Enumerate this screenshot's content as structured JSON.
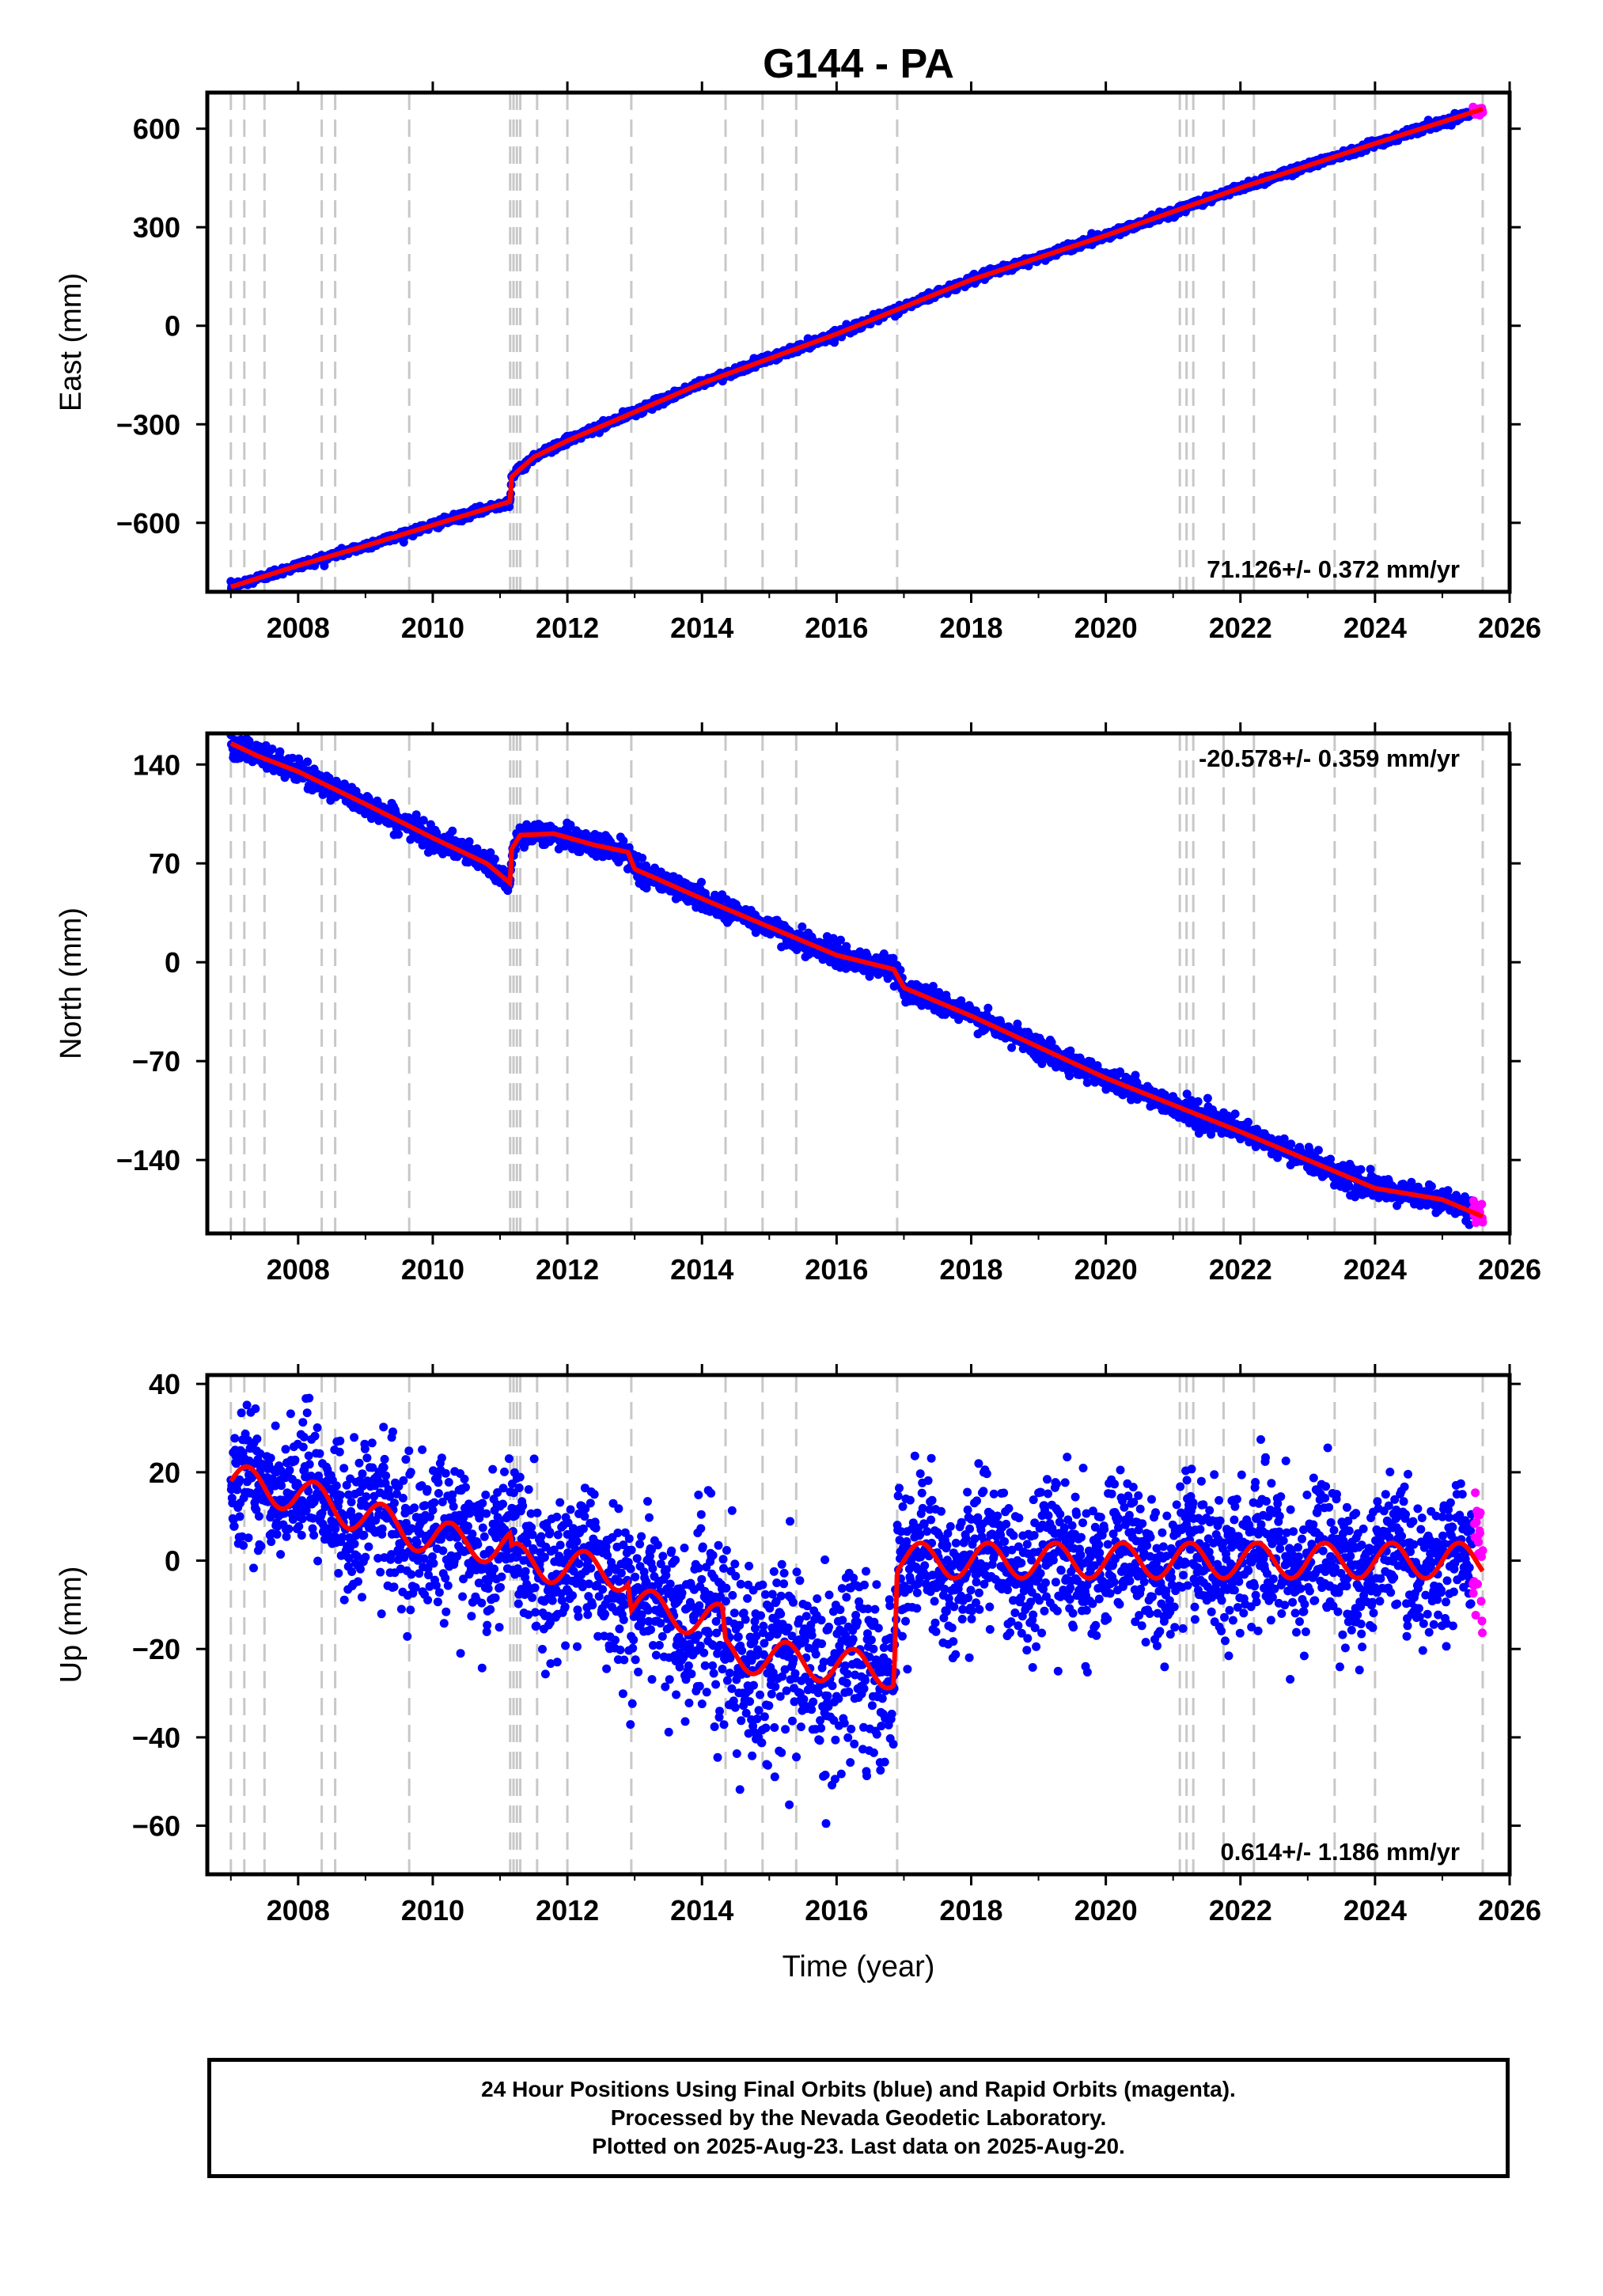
{
  "title": "G144 - PA",
  "xlabel": "Time (year)",
  "chart_data": [
    {
      "type": "scatter",
      "panel": "east",
      "ylabel": "East (mm)",
      "x_ticks": [
        2008,
        2010,
        2012,
        2014,
        2016,
        2018,
        2020,
        2022,
        2024,
        2026
      ],
      "y_ticks": [
        -600,
        -300,
        0,
        300,
        600
      ],
      "xlim": [
        2006.65,
        2026.0
      ],
      "ylim": [
        -810,
        710
      ],
      "rate_text": "71.126+/- 0.372 mm/yr",
      "rate_position": "bottom-right",
      "series_colors": {
        "final_orbits": "#0000ff",
        "rapid_orbits": "#ff00ff",
        "model": "#ff0000"
      },
      "model_breakpoints": [
        {
          "x": 2007.0,
          "y": -795
        },
        {
          "x": 2008.0,
          "y": -730
        },
        {
          "x": 2009.0,
          "y": -670
        },
        {
          "x": 2010.0,
          "y": -607
        },
        {
          "x": 2011.15,
          "y": -535
        },
        {
          "x": 2011.17,
          "y": -460
        },
        {
          "x": 2011.5,
          "y": -400
        },
        {
          "x": 2012.0,
          "y": -350
        },
        {
          "x": 2014.0,
          "y": -175
        },
        {
          "x": 2016.0,
          "y": -25
        },
        {
          "x": 2018.0,
          "y": 140
        },
        {
          "x": 2020.0,
          "y": 275
        },
        {
          "x": 2022.0,
          "y": 420
        },
        {
          "x": 2024.0,
          "y": 555
        },
        {
          "x": 2025.6,
          "y": 660
        }
      ],
      "noise_mm": 6
    },
    {
      "type": "scatter",
      "panel": "north",
      "ylabel": "North (mm)",
      "x_ticks": [
        2008,
        2010,
        2012,
        2014,
        2016,
        2018,
        2020,
        2022,
        2024,
        2026
      ],
      "y_ticks": [
        -140,
        -70,
        0,
        70,
        140
      ],
      "xlim": [
        2006.65,
        2026.0
      ],
      "ylim": [
        -192,
        162
      ],
      "rate_text": "-20.578+/- 0.359 mm/yr",
      "rate_position": "top-right",
      "series_colors": {
        "final_orbits": "#0000ff",
        "rapid_orbits": "#ff00ff",
        "model": "#ff0000"
      },
      "model_breakpoints": [
        {
          "x": 2007.0,
          "y": 155
        },
        {
          "x": 2007.4,
          "y": 146
        },
        {
          "x": 2008.0,
          "y": 135
        },
        {
          "x": 2009.0,
          "y": 112
        },
        {
          "x": 2010.0,
          "y": 88
        },
        {
          "x": 2010.8,
          "y": 70
        },
        {
          "x": 2011.15,
          "y": 56
        },
        {
          "x": 2011.17,
          "y": 80
        },
        {
          "x": 2011.3,
          "y": 90
        },
        {
          "x": 2011.8,
          "y": 91
        },
        {
          "x": 2012.4,
          "y": 83
        },
        {
          "x": 2012.9,
          "y": 78
        },
        {
          "x": 2013.0,
          "y": 66
        },
        {
          "x": 2014.0,
          "y": 45
        },
        {
          "x": 2016.0,
          "y": 5
        },
        {
          "x": 2016.85,
          "y": -5
        },
        {
          "x": 2017.0,
          "y": -18
        },
        {
          "x": 2018.0,
          "y": -38
        },
        {
          "x": 2020.0,
          "y": -82
        },
        {
          "x": 2022.0,
          "y": -120
        },
        {
          "x": 2024.0,
          "y": -160
        },
        {
          "x": 2025.0,
          "y": -168
        },
        {
          "x": 2025.6,
          "y": -180
        }
      ],
      "noise_mm": 4
    },
    {
      "type": "scatter",
      "panel": "up",
      "ylabel": "Up (mm)",
      "x_ticks": [
        2008,
        2010,
        2012,
        2014,
        2016,
        2018,
        2020,
        2022,
        2024,
        2026
      ],
      "y_ticks": [
        -60,
        -40,
        -20,
        0,
        20,
        40
      ],
      "xlim": [
        2006.65,
        2026.0
      ],
      "ylim": [
        -71,
        42
      ],
      "rate_text": "0.614+/- 1.186 mm/yr",
      "rate_position": "bottom-right",
      "series_colors": {
        "final_orbits": "#0000ff",
        "rapid_orbits": "#ff00ff",
        "model": "#ff0000"
      },
      "model_breakpoints": [
        {
          "x": 2007.0,
          "y": 18
        },
        {
          "x": 2008.0,
          "y": 15
        },
        {
          "x": 2010.0,
          "y": 5
        },
        {
          "x": 2011.15,
          "y": 3
        },
        {
          "x": 2011.17,
          "y": 0
        },
        {
          "x": 2012.9,
          "y": -3
        },
        {
          "x": 2012.95,
          "y": -10
        },
        {
          "x": 2014.3,
          "y": -14
        },
        {
          "x": 2014.35,
          "y": -21
        },
        {
          "x": 2016.85,
          "y": -25
        },
        {
          "x": 2016.9,
          "y": 0
        },
        {
          "x": 2025.6,
          "y": 0
        }
      ],
      "seasonal_amplitude_mm": 4,
      "noise_mm": 8
    }
  ],
  "equipment_change_years": [
    2007.0,
    2007.2,
    2007.5,
    2008.35,
    2008.55,
    2009.65,
    2011.15,
    2011.2,
    2011.25,
    2011.3,
    2011.55,
    2012.0,
    2012.95,
    2014.35,
    2014.9,
    2015.4,
    2016.9,
    2021.1,
    2021.2,
    2021.3,
    2021.75,
    2022.2,
    2023.4,
    2024.0,
    2025.6
  ],
  "footer": {
    "line1": "24 Hour Positions Using Final Orbits (blue) and Rapid Orbits (magenta).",
    "line2": "Processed by the Nevada Geodetic Laboratory.",
    "line3": "Plotted on 2025-Aug-23. Last data on 2025-Aug-20."
  }
}
